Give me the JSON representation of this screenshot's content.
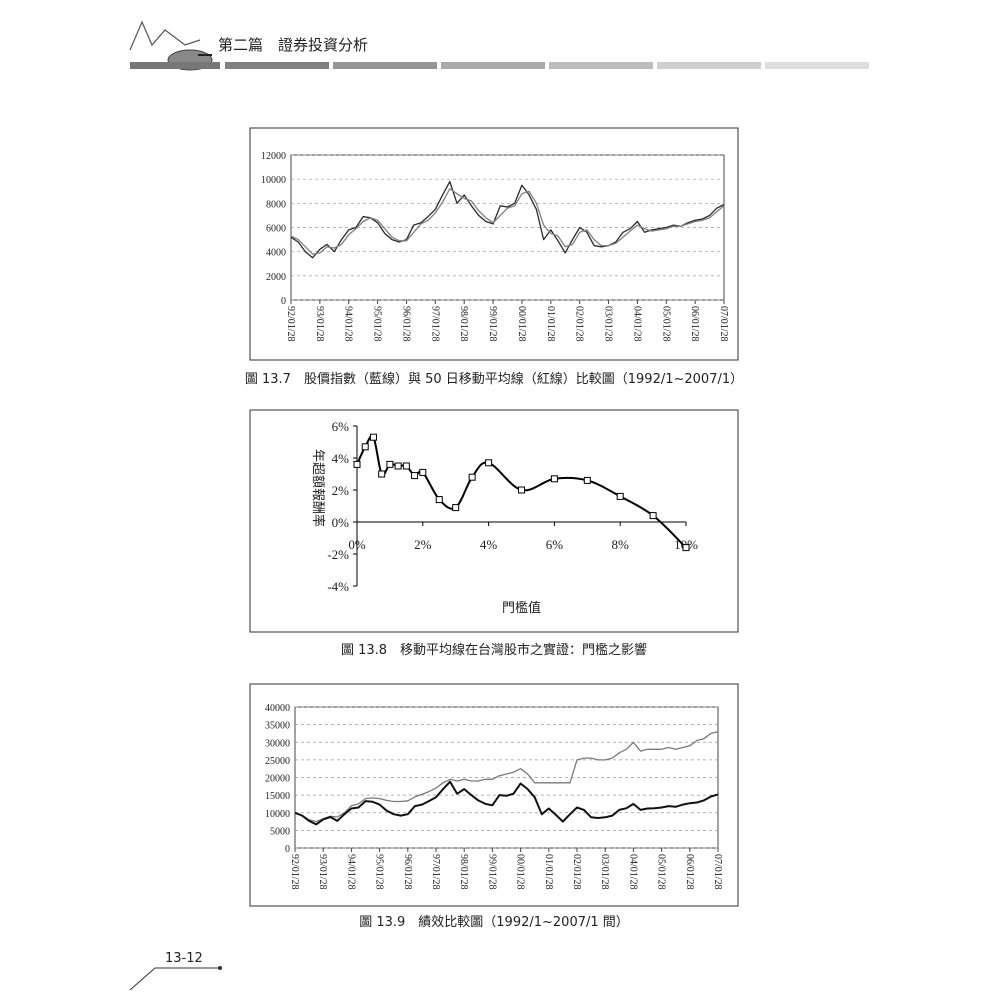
{
  "header": {
    "title": "第二篇　證券投資分析"
  },
  "page_number": "13-12",
  "chart_data": [
    {
      "type": "line",
      "caption": "圖 13.7　股價指數（藍線）與 50 日移動平均線（紅線）比較圖（1992/1~2007/1）",
      "categories": [
        "92/01/28",
        null,
        null,
        null,
        "93/01/28",
        null,
        null,
        null,
        "94/01/28",
        null,
        null,
        null,
        "95/01/28",
        null,
        null,
        null,
        "96/01/28",
        null,
        null,
        null,
        "97/01/28",
        null,
        null,
        null,
        "98/01/28",
        null,
        null,
        null,
        "99/01/28",
        null,
        null,
        null,
        "00/01/28",
        null,
        null,
        null,
        "01/01/28",
        null,
        null,
        null,
        "02/01/28",
        null,
        null,
        null,
        "03/01/28",
        null,
        null,
        null,
        "04/01/28",
        null,
        null,
        null,
        "05/01/28",
        null,
        null,
        null,
        "06/01/28",
        null,
        null,
        null,
        "07/01/28"
      ],
      "series": [
        {
          "color": "#2a2a2a",
          "values": [
            5200,
            4800,
            4000,
            3500,
            4200,
            4600,
            4000,
            5000,
            5800,
            6000,
            6900,
            6800,
            6400,
            5500,
            5000,
            4800,
            5000,
            6200,
            6400,
            6900,
            7500,
            8700,
            9800,
            8000,
            8700,
            7800,
            7000,
            6500,
            6300,
            7800,
            7700,
            8000,
            9500,
            8700,
            7500,
            5000,
            5800,
            4900,
            3900,
            5000,
            6000,
            5600,
            4500,
            4400,
            4500,
            4800,
            5600,
            5900,
            6500,
            5600,
            5800,
            5900,
            6000,
            6200,
            6100,
            6400,
            6600,
            6700,
            7000,
            7600,
            7900
          ]
        },
        {
          "color": "#808080",
          "values": [
            5300,
            5000,
            4400,
            3800,
            3900,
            4400,
            4300,
            4600,
            5400,
            5900,
            6500,
            6800,
            6600,
            5900,
            5200,
            4900,
            4900,
            5600,
            6300,
            6600,
            7200,
            8100,
            9200,
            8800,
            8400,
            8200,
            7400,
            6800,
            6400,
            7000,
            7600,
            7800,
            8800,
            9000,
            8000,
            6200,
            5500,
            5300,
            4400,
            4600,
            5600,
            5800,
            5000,
            4500,
            4500,
            4700,
            5200,
            5700,
            6200,
            5900,
            5700,
            5800,
            5900,
            6100,
            6100,
            6300,
            6500,
            6600,
            6800,
            7300,
            7800
          ]
        }
      ],
      "ylim": [
        0,
        12000
      ],
      "yticks": [
        0,
        2000,
        4000,
        6000,
        8000,
        10000,
        12000
      ],
      "grid": true
    },
    {
      "type": "smooth-line",
      "caption": "圖 13.8　移動平均線在台灣股市之實證：門檻之影響",
      "xlabel": "門檻值",
      "ylabel": "年超額報酬率",
      "x": [
        0,
        0.25,
        0.5,
        0.75,
        1,
        1.25,
        1.5,
        1.75,
        2,
        2.5,
        3,
        3.5,
        4,
        5,
        6,
        7,
        8,
        9,
        10
      ],
      "series": [
        {
          "color": "#000000",
          "values": [
            3.6,
            4.7,
            5.3,
            3.0,
            3.6,
            3.5,
            3.5,
            2.9,
            3.1,
            1.4,
            0.9,
            2.8,
            3.7,
            2.0,
            2.7,
            2.6,
            1.6,
            0.4,
            -1.6
          ]
        }
      ],
      "xlim": [
        0,
        10
      ],
      "xticks": [
        {
          "value": 0,
          "label": "0%"
        },
        {
          "value": 2,
          "label": "2%"
        },
        {
          "value": 4,
          "label": "4%"
        },
        {
          "value": 6,
          "label": "6%"
        },
        {
          "value": 8,
          "label": "8%"
        },
        {
          "value": 10,
          "label": "10%"
        }
      ],
      "ylim": [
        -4,
        6
      ],
      "yticks": [
        {
          "value": -4,
          "label": "-4%"
        },
        {
          "value": -2,
          "label": "-2%"
        },
        {
          "value": 0,
          "label": "0%"
        },
        {
          "value": 2,
          "label": "2%"
        },
        {
          "value": 4,
          "label": "4%"
        },
        {
          "value": 6,
          "label": "6%"
        }
      ],
      "grid": false
    },
    {
      "type": "line",
      "caption": "圖 13.9　績效比較圖（1992/1~2007/1 間）",
      "categories": [
        "92/01/28",
        null,
        null,
        null,
        "93/01/28",
        null,
        null,
        null,
        "94/01/28",
        null,
        null,
        null,
        "95/01/28",
        null,
        null,
        null,
        "96/01/28",
        null,
        null,
        null,
        "97/01/28",
        null,
        null,
        null,
        "98/01/28",
        null,
        null,
        null,
        "99/01/28",
        null,
        null,
        null,
        "00/01/28",
        null,
        null,
        null,
        "01/01/28",
        null,
        null,
        null,
        "02/01/28",
        null,
        null,
        null,
        "03/01/28",
        null,
        null,
        null,
        "04/01/28",
        null,
        null,
        null,
        "05/01/28",
        null,
        null,
        null,
        "06/01/28",
        null,
        null,
        null,
        "07/01/28"
      ],
      "series": [
        {
          "color": "#7a7a7a",
          "values": [
            10000,
            9200,
            8000,
            7500,
            8300,
            9000,
            8800,
            10000,
            12000,
            12500,
            14000,
            14200,
            14000,
            13500,
            13200,
            13200,
            13400,
            14500,
            15200,
            16000,
            17000,
            18500,
            19500,
            19000,
            19500,
            19000,
            19000,
            19500,
            19500,
            20500,
            21000,
            21500,
            22500,
            21000,
            18500,
            18500,
            18500,
            18500,
            18500,
            18500,
            25000,
            25500,
            25500,
            25000,
            25000,
            25500,
            27000,
            28000,
            30000,
            27500,
            28000,
            28000,
            28000,
            28500,
            28000,
            28500,
            29000,
            30500,
            31000,
            32500,
            33000
          ]
        },
        {
          "color": "#111111",
          "values": [
            10000,
            9200,
            7700,
            6700,
            8100,
            8800,
            7700,
            9600,
            11200,
            11500,
            13300,
            13100,
            12300,
            10600,
            9600,
            9200,
            9600,
            11900,
            12300,
            13300,
            14400,
            16700,
            18800,
            15400,
            16700,
            15000,
            13500,
            12500,
            12100,
            15000,
            14800,
            15400,
            18300,
            16700,
            14400,
            9600,
            11200,
            9400,
            7500,
            9600,
            11500,
            10800,
            8700,
            8500,
            8700,
            9200,
            10800,
            11300,
            12500,
            10800,
            11200,
            11300,
            11500,
            11900,
            11700,
            12300,
            12700,
            12900,
            13500,
            14600,
            15200
          ]
        }
      ],
      "ylim": [
        0,
        40000
      ],
      "yticks": [
        0,
        5000,
        10000,
        15000,
        20000,
        25000,
        30000,
        35000,
        40000
      ],
      "grid": true
    }
  ]
}
